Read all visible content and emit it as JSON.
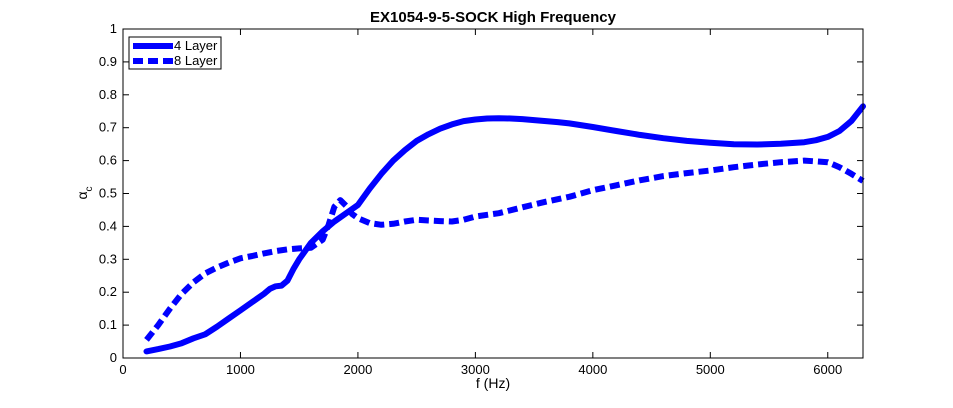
{
  "chart_data": {
    "type": "line",
    "title": "EX1054-9-5-SOCK High Frequency",
    "xlabel": "f (Hz)",
    "ylabel": "α",
    "ylabel_subscript": "c",
    "xlim": [
      0,
      6300
    ],
    "ylim": [
      0,
      1
    ],
    "xticks": [
      0,
      1000,
      2000,
      3000,
      4000,
      5000,
      6000
    ],
    "yticks": [
      0,
      0.1,
      0.2,
      0.3,
      0.4,
      0.5,
      0.6,
      0.7,
      0.8,
      0.9,
      1
    ],
    "grid": false,
    "legend_position": "top-left",
    "series": [
      {
        "name": "4 Layer",
        "style": "solid",
        "color": "#0000ff",
        "x": [
          200,
          300,
          400,
          500,
          600,
          700,
          800,
          900,
          1000,
          1100,
          1200,
          1250,
          1300,
          1350,
          1400,
          1450,
          1500,
          1600,
          1700,
          1800,
          1900,
          2000,
          2100,
          2200,
          2300,
          2400,
          2500,
          2600,
          2700,
          2800,
          2900,
          3000,
          3100,
          3200,
          3300,
          3400,
          3500,
          3600,
          3700,
          3800,
          4000,
          4200,
          4400,
          4600,
          4800,
          5000,
          5200,
          5400,
          5600,
          5800,
          5900,
          6000,
          6100,
          6200,
          6300
        ],
        "y": [
          0.02,
          0.027,
          0.035,
          0.045,
          0.06,
          0.072,
          0.095,
          0.12,
          0.145,
          0.17,
          0.195,
          0.21,
          0.218,
          0.22,
          0.235,
          0.27,
          0.3,
          0.35,
          0.385,
          0.415,
          0.44,
          0.465,
          0.515,
          0.56,
          0.6,
          0.632,
          0.66,
          0.68,
          0.697,
          0.71,
          0.72,
          0.725,
          0.728,
          0.729,
          0.728,
          0.726,
          0.723,
          0.72,
          0.717,
          0.713,
          0.702,
          0.69,
          0.678,
          0.668,
          0.66,
          0.654,
          0.65,
          0.649,
          0.651,
          0.656,
          0.662,
          0.672,
          0.69,
          0.72,
          0.765
        ]
      },
      {
        "name": "8 Layer",
        "style": "dashed",
        "color": "#0000ff",
        "x": [
          200,
          300,
          400,
          500,
          600,
          700,
          800,
          900,
          1000,
          1100,
          1200,
          1300,
          1400,
          1500,
          1600,
          1700,
          1750,
          1800,
          1850,
          1900,
          1950,
          2000,
          2100,
          2200,
          2300,
          2400,
          2500,
          2600,
          2700,
          2800,
          2900,
          3000,
          3200,
          3400,
          3600,
          3800,
          4000,
          4200,
          4400,
          4600,
          4800,
          5000,
          5200,
          5400,
          5600,
          5800,
          6000,
          6100,
          6200,
          6300
        ],
        "y": [
          0.055,
          0.1,
          0.15,
          0.195,
          0.23,
          0.257,
          0.275,
          0.29,
          0.303,
          0.31,
          0.318,
          0.325,
          0.33,
          0.333,
          0.335,
          0.36,
          0.405,
          0.46,
          0.48,
          0.462,
          0.438,
          0.425,
          0.41,
          0.405,
          0.408,
          0.415,
          0.42,
          0.418,
          0.416,
          0.415,
          0.42,
          0.43,
          0.44,
          0.458,
          0.475,
          0.49,
          0.51,
          0.525,
          0.54,
          0.553,
          0.562,
          0.57,
          0.58,
          0.588,
          0.595,
          0.6,
          0.595,
          0.58,
          0.56,
          0.538
        ]
      }
    ]
  }
}
